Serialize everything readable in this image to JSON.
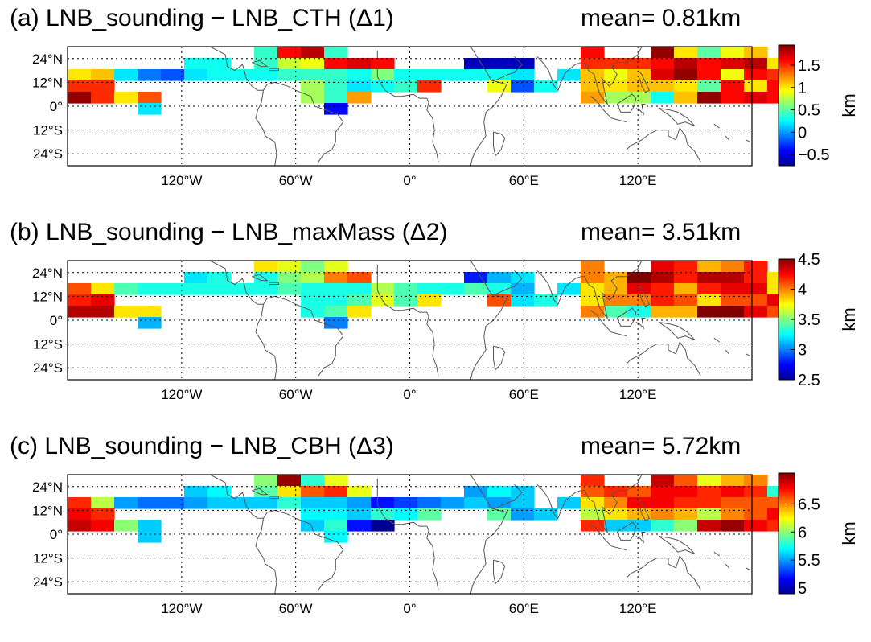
{
  "colors": {
    "colormap": [
      "#00008f",
      "#0000ff",
      "#0080ff",
      "#00ffff",
      "#80ff80",
      "#ffff00",
      "#ff8000",
      "#ff0000",
      "#800000"
    ],
    "coast": "#555555",
    "frame": "#000000"
  },
  "shared_axes": {
    "lat_ticks": [
      "24°N",
      "12°N",
      "0°",
      "12°S",
      "24°S"
    ],
    "lon_ticks": [
      "120°W",
      "60°W",
      "0°",
      "60°E",
      "120°E"
    ]
  },
  "panels": [
    {
      "title": "(a) LNB_sounding − LNB_CTH (Δ1)",
      "mean": "mean= 0.81km",
      "unit": "km",
      "colorbar_ticks": [
        "1.5",
        "1",
        "0.5",
        "0",
        "−0.5"
      ],
      "range": [
        -0.75,
        1.95
      ],
      "grid_values": [
        [
          null,
          null,
          null,
          null,
          null,
          null,
          null,
          null,
          0.4,
          1.6,
          1.8,
          0.4,
          null,
          null,
          null,
          null,
          null,
          null,
          null,
          null,
          null,
          null,
          1.6,
          null,
          null,
          1.9,
          1.0,
          0.5,
          0.9,
          1.1,
          null
        ],
        [
          null,
          null,
          null,
          null,
          null,
          0.3,
          0.3,
          null,
          0.4,
          0.8,
          0.9,
          1.6,
          1.7,
          1.6,
          null,
          null,
          null,
          -0.6,
          -0.6,
          -0.6,
          null,
          null,
          1.5,
          1.5,
          1.5,
          1.6,
          1.8,
          1.6,
          1.7,
          1.8,
          1.0
        ],
        [
          1.0,
          1.1,
          0.2,
          -0.1,
          -0.2,
          0.2,
          0.3,
          0.3,
          0.3,
          0.4,
          0.4,
          0.4,
          0.3,
          0.6,
          0.3,
          0.3,
          0.3,
          0.3,
          0.3,
          0.2,
          null,
          0.2,
          1.1,
          0.9,
          1.1,
          1.7,
          1.9,
          1.6,
          0.9,
          1.6,
          1.5
        ],
        [
          1.5,
          1.5,
          null,
          null,
          null,
          null,
          null,
          null,
          null,
          null,
          0.7,
          0.4,
          0.2,
          0.3,
          0.4,
          1.5,
          null,
          null,
          0.9,
          -0.2,
          0.3,
          null,
          1.1,
          1.0,
          1.1,
          1.1,
          1.0,
          0.5,
          1.6,
          1.0,
          1.6
        ],
        [
          1.9,
          1.5,
          1.0,
          1.4,
          null,
          null,
          null,
          null,
          null,
          null,
          0.7,
          0.4,
          1.2,
          null,
          null,
          null,
          null,
          null,
          null,
          null,
          null,
          null,
          1.2,
          0.7,
          0.7,
          0.3,
          1.1,
          1.9,
          1.6,
          1.7,
          1.6
        ],
        [
          null,
          null,
          null,
          0.2,
          null,
          null,
          null,
          null,
          null,
          null,
          null,
          -0.4,
          null,
          null,
          null,
          null,
          null,
          null,
          null,
          null,
          null,
          null,
          null,
          null,
          null,
          null,
          null,
          null,
          null,
          null,
          null
        ]
      ]
    },
    {
      "title": "(b) LNB_sounding − LNB_maxMass (Δ2)",
      "mean": "mean= 3.51km",
      "unit": "km",
      "colorbar_ticks": [
        "4.5",
        "4",
        "3.5",
        "3",
        "2.5"
      ],
      "range": [
        2.5,
        4.5
      ],
      "grid_values": [
        [
          null,
          null,
          null,
          null,
          null,
          null,
          null,
          null,
          3.8,
          3.7,
          3.5,
          3.7,
          null,
          null,
          null,
          null,
          null,
          null,
          null,
          null,
          null,
          null,
          4.0,
          null,
          null,
          4.3,
          4.2,
          3.9,
          4.0,
          4.2,
          null
        ],
        [
          null,
          null,
          null,
          null,
          null,
          3.2,
          3.3,
          null,
          3.3,
          3.5,
          3.6,
          4.0,
          4.1,
          null,
          null,
          null,
          null,
          2.8,
          3.1,
          3.2,
          null,
          null,
          4.0,
          3.9,
          4.5,
          4.4,
          4.2,
          4.4,
          4.4,
          4.2,
          3.8
        ],
        [
          4.1,
          3.8,
          3.4,
          3.3,
          3.3,
          3.3,
          3.3,
          3.3,
          3.3,
          3.4,
          3.3,
          3.3,
          3.3,
          3.6,
          3.4,
          3.3,
          3.3,
          3.4,
          3.3,
          3.1,
          null,
          3.2,
          3.8,
          3.9,
          4.3,
          4.2,
          3.9,
          4.2,
          4.3,
          4.3,
          3.8
        ],
        [
          4.2,
          4.3,
          null,
          null,
          null,
          null,
          null,
          null,
          null,
          null,
          3.3,
          3.3,
          3.4,
          3.7,
          3.4,
          3.8,
          null,
          null,
          4.1,
          3.2,
          3.3,
          null,
          3.8,
          4.0,
          4.0,
          4.2,
          4.1,
          3.8,
          4.1,
          4.1,
          4.3
        ],
        [
          4.4,
          4.4,
          3.8,
          3.8,
          null,
          null,
          null,
          null,
          null,
          null,
          3.3,
          3.4,
          3.8,
          null,
          null,
          null,
          null,
          null,
          null,
          null,
          null,
          null,
          4.0,
          3.4,
          3.3,
          3.9,
          3.9,
          4.5,
          4.5,
          4.3,
          4.1
        ],
        [
          null,
          null,
          null,
          3.1,
          null,
          null,
          null,
          null,
          null,
          null,
          null,
          3.0,
          null,
          null,
          null,
          null,
          null,
          null,
          null,
          null,
          null,
          null,
          null,
          null,
          null,
          null,
          null,
          null,
          null,
          null,
          null
        ]
      ]
    },
    {
      "title": "(c) LNB_sounding − LNB_CBH (Δ3)",
      "mean": "mean= 5.72km",
      "unit": "km",
      "colorbar_ticks": [
        "6.5",
        "6",
        "5.5",
        "5"
      ],
      "range": [
        4.9,
        7.05
      ],
      "grid_values": [
        [
          null,
          null,
          null,
          null,
          null,
          null,
          null,
          null,
          6.0,
          7.0,
          5.8,
          6.2,
          null,
          null,
          null,
          null,
          null,
          null,
          null,
          null,
          null,
          null,
          6.7,
          null,
          null,
          6.9,
          6.6,
          6.2,
          6.4,
          6.5,
          null
        ],
        [
          null,
          null,
          null,
          null,
          null,
          5.6,
          5.7,
          null,
          5.9,
          6.3,
          6.6,
          6.7,
          6.2,
          null,
          null,
          null,
          null,
          5.5,
          5.7,
          5.6,
          null,
          null,
          6.6,
          6.7,
          6.6,
          6.8,
          6.8,
          6.7,
          6.8,
          6.7,
          5.8
        ],
        [
          6.7,
          6.1,
          5.5,
          5.4,
          5.4,
          5.5,
          5.6,
          5.6,
          5.6,
          5.8,
          5.6,
          5.6,
          5.5,
          5.2,
          5.3,
          5.4,
          5.5,
          5.6,
          5.5,
          5.6,
          null,
          5.6,
          6.3,
          6.5,
          6.8,
          6.8,
          6.7,
          6.7,
          6.6,
          6.6,
          6.6
        ],
        [
          6.8,
          6.7,
          null,
          null,
          null,
          null,
          null,
          null,
          null,
          null,
          5.7,
          5.7,
          5.6,
          5.8,
          5.7,
          5.9,
          null,
          null,
          5.9,
          5.5,
          5.6,
          null,
          6.1,
          6.3,
          6.4,
          6.5,
          6.4,
          6.1,
          6.5,
          6.6,
          6.8
        ],
        [
          6.9,
          6.8,
          6.0,
          5.6,
          null,
          null,
          null,
          null,
          null,
          null,
          5.6,
          5.8,
          5.2,
          4.9,
          null,
          null,
          null,
          null,
          null,
          null,
          null,
          null,
          6.7,
          5.6,
          5.6,
          5.8,
          6.0,
          6.9,
          7.0,
          6.8,
          6.7
        ],
        [
          null,
          null,
          null,
          5.6,
          null,
          null,
          null,
          null,
          null,
          null,
          null,
          5.7,
          null,
          null,
          null,
          null,
          null,
          null,
          null,
          null,
          null,
          null,
          null,
          null,
          null,
          null,
          null,
          null,
          null,
          null,
          null
        ]
      ]
    }
  ]
}
